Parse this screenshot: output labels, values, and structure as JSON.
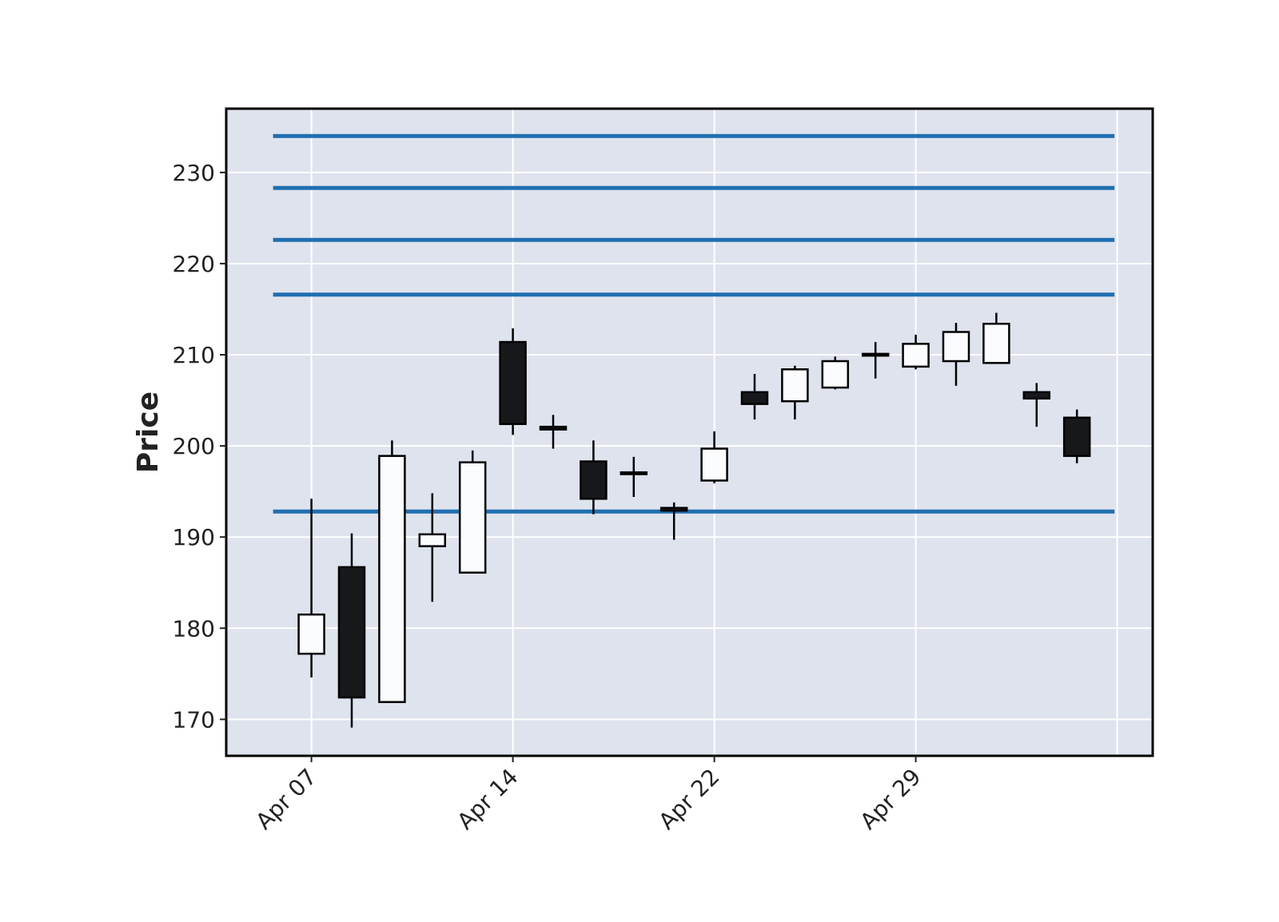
{
  "chart_data": {
    "type": "candlestick",
    "title": "",
    "xlabel": "",
    "ylabel": "Price",
    "ylim": [
      166,
      237
    ],
    "y_ticks": [
      170,
      180,
      190,
      200,
      210,
      220,
      230
    ],
    "x_tick_labels": [
      {
        "label": "Apr 07",
        "candle_index": 0
      },
      {
        "label": "Apr 14",
        "candle_index": 5
      },
      {
        "label": "Apr 22",
        "candle_index": 10
      },
      {
        "label": "Apr 29",
        "candle_index": 15
      }
    ],
    "grid": true,
    "colors": {
      "background": "#dfe3ee",
      "grid": "#ffffff",
      "up": "#fbfcfe",
      "down": "#17181a",
      "outline": "#000000",
      "levels": "#1f6fb0"
    },
    "candles": [
      {
        "open": 177.2,
        "high": 194.2,
        "low": 174.6,
        "close": 181.5
      },
      {
        "open": 186.7,
        "high": 190.4,
        "low": 169.1,
        "close": 172.4
      },
      {
        "open": 171.9,
        "high": 200.6,
        "low": 171.9,
        "close": 198.9
      },
      {
        "open": 189.0,
        "high": 194.8,
        "low": 182.9,
        "close": 190.3
      },
      {
        "open": 186.1,
        "high": 199.5,
        "low": 186.1,
        "close": 198.2
      },
      {
        "open": 211.4,
        "high": 212.9,
        "low": 201.2,
        "close": 202.4
      },
      {
        "open": 202.1,
        "high": 203.4,
        "low": 199.7,
        "close": 201.8
      },
      {
        "open": 198.3,
        "high": 200.6,
        "low": 192.5,
        "close": 194.2
      },
      {
        "open": 197.1,
        "high": 198.8,
        "low": 194.4,
        "close": 196.9
      },
      {
        "open": 193.2,
        "high": 193.8,
        "low": 189.7,
        "close": 192.9
      },
      {
        "open": 196.2,
        "high": 201.6,
        "low": 195.9,
        "close": 199.7
      },
      {
        "open": 205.9,
        "high": 207.9,
        "low": 202.9,
        "close": 204.6
      },
      {
        "open": 204.9,
        "high": 208.8,
        "low": 202.9,
        "close": 208.4
      },
      {
        "open": 206.4,
        "high": 209.8,
        "low": 206.2,
        "close": 209.3
      },
      {
        "open": 210.1,
        "high": 211.4,
        "low": 207.4,
        "close": 209.9
      },
      {
        "open": 208.7,
        "high": 212.2,
        "low": 208.4,
        "close": 211.2
      },
      {
        "open": 209.3,
        "high": 213.5,
        "low": 206.6,
        "close": 212.5
      },
      {
        "open": 209.1,
        "high": 214.6,
        "low": 209.1,
        "close": 213.4
      },
      {
        "open": 205.9,
        "high": 206.9,
        "low": 202.1,
        "close": 205.2
      },
      {
        "open": 203.1,
        "high": 204.0,
        "low": 198.1,
        "close": 198.9
      }
    ],
    "horizontal_levels": [
      234.0,
      228.3,
      222.6,
      216.6,
      192.8
    ]
  }
}
